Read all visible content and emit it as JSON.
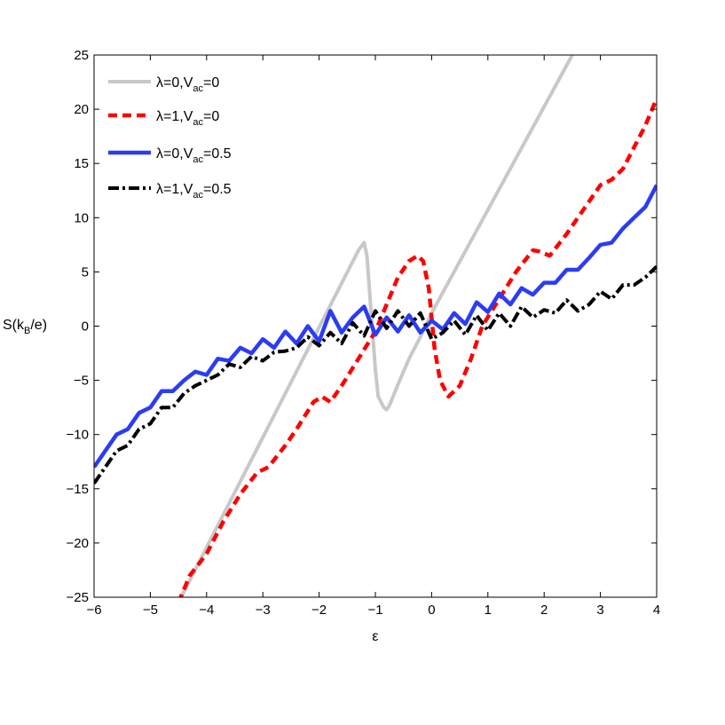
{
  "chart_data": {
    "type": "line",
    "xlabel": "ε",
    "ylabel": "S(k_B/e)",
    "ylabel_parts": [
      "S(k",
      "B",
      "/e)"
    ],
    "xlim": [
      -6,
      4
    ],
    "ylim": [
      -25,
      25
    ],
    "xticks": [
      -6,
      -5,
      -4,
      -3,
      -2,
      -1,
      0,
      1,
      2,
      3,
      4
    ],
    "yticks": [
      -25,
      -20,
      -15,
      -10,
      -5,
      0,
      5,
      10,
      15,
      20,
      25
    ],
    "xtick_labels": [
      "−6",
      "−5",
      "−4",
      "−3",
      "−2",
      "−1",
      "0",
      "1",
      "2",
      "3",
      "4"
    ],
    "ytick_labels": [
      "−25",
      "−20",
      "−15",
      "−10",
      "−5",
      "0",
      "5",
      "10",
      "15",
      "20",
      "25"
    ],
    "grid": false,
    "legend_position": "top-left",
    "series": [
      {
        "name": "λ=0,V_ac=0",
        "name_parts": [
          "λ=0,V",
          "ac",
          "=0"
        ],
        "color": "#c8c8c8",
        "dash": "solid",
        "x": [
          -4.6,
          -1.3,
          -1.2,
          -1.15,
          -1.0,
          -0.95,
          -0.85,
          -0.8,
          -0.75,
          -0.6,
          -0.4,
          -0.2,
          0.0,
          2.5
        ],
        "y": [
          -26.5,
          7.0,
          7.7,
          6.5,
          -4.0,
          -6.5,
          -7.5,
          -7.7,
          -7.3,
          -5.4,
          -3.0,
          -1.0,
          1.2,
          25.0
        ]
      },
      {
        "name": "λ=1,V_ac=0",
        "name_parts": [
          "λ=1,V",
          "ac",
          "=0"
        ],
        "color": "#ff0000",
        "dash": "dashed",
        "x": [
          -4.5,
          -4.3,
          -4.0,
          -3.7,
          -3.4,
          -3.1,
          -2.9,
          -2.6,
          -2.4,
          -2.1,
          -1.95,
          -1.8,
          -1.6,
          -1.3,
          -1.0,
          -0.8,
          -0.6,
          -0.4,
          -0.25,
          -0.15,
          -0.05,
          0.05,
          0.15,
          0.3,
          0.5,
          0.7,
          0.9,
          1.2,
          1.5,
          1.8,
          1.9,
          2.1,
          2.4,
          2.6,
          2.8,
          3.0,
          3.2,
          3.4,
          3.6,
          3.8,
          4.0
        ],
        "y": [
          -25.5,
          -23.0,
          -21.0,
          -18.0,
          -15.5,
          -13.5,
          -13.0,
          -11.0,
          -9.5,
          -7.0,
          -6.5,
          -7.0,
          -5.5,
          -3.0,
          -0.5,
          2.0,
          4.5,
          6.0,
          6.5,
          6.0,
          3.5,
          -2.0,
          -5.0,
          -6.5,
          -5.5,
          -3.0,
          0.0,
          2.5,
          5.0,
          7.0,
          6.9,
          6.5,
          8.5,
          10.0,
          11.5,
          13.0,
          13.5,
          14.5,
          16.5,
          18.5,
          21.0
        ]
      },
      {
        "name": "λ=0,V_ac=0.5",
        "name_parts": [
          "λ=0,V",
          "ac",
          "=0.5"
        ],
        "color": "#2b3cf5",
        "dash": "solid",
        "x": [
          -6.0,
          -5.8,
          -5.6,
          -5.4,
          -5.2,
          -5.0,
          -4.8,
          -4.6,
          -4.4,
          -4.2,
          -4.0,
          -3.8,
          -3.6,
          -3.4,
          -3.2,
          -3.0,
          -2.8,
          -2.6,
          -2.4,
          -2.2,
          -2.0,
          -1.8,
          -1.6,
          -1.4,
          -1.2,
          -1.0,
          -0.8,
          -0.6,
          -0.4,
          -0.2,
          0.0,
          0.2,
          0.4,
          0.6,
          0.8,
          1.0,
          1.2,
          1.4,
          1.6,
          1.8,
          2.0,
          2.2,
          2.4,
          2.6,
          2.8,
          3.0,
          3.2,
          3.4,
          3.6,
          3.8,
          4.0
        ],
        "y": [
          -13.0,
          -11.5,
          -10.0,
          -9.5,
          -8.0,
          -7.5,
          -6.0,
          -6.0,
          -5.0,
          -4.2,
          -4.5,
          -3.0,
          -3.2,
          -2.0,
          -2.5,
          -1.2,
          -2.0,
          -0.5,
          -1.6,
          0.0,
          -1.4,
          1.4,
          -0.6,
          0.8,
          1.8,
          -0.8,
          0.8,
          -0.5,
          1.0,
          -0.6,
          0.5,
          -0.3,
          1.2,
          0.2,
          2.2,
          1.3,
          3.0,
          2.0,
          3.5,
          2.9,
          4.0,
          4.0,
          5.2,
          5.2,
          6.3,
          7.5,
          7.7,
          9.0,
          10.0,
          11.0,
          13.0
        ]
      },
      {
        "name": "λ=1,V_ac=0.5",
        "name_parts": [
          "λ=1,V",
          "ac",
          "=0.5"
        ],
        "color": "#000000",
        "dash": "dashdot",
        "x": [
          -6.0,
          -5.8,
          -5.6,
          -5.4,
          -5.2,
          -5.0,
          -4.8,
          -4.6,
          -4.4,
          -4.2,
          -4.0,
          -3.8,
          -3.6,
          -3.4,
          -3.2,
          -3.0,
          -2.8,
          -2.6,
          -2.4,
          -2.2,
          -2.0,
          -1.8,
          -1.6,
          -1.4,
          -1.2,
          -1.0,
          -0.8,
          -0.6,
          -0.4,
          -0.2,
          0.0,
          0.2,
          0.4,
          0.6,
          0.8,
          1.0,
          1.2,
          1.4,
          1.6,
          1.8,
          2.0,
          2.2,
          2.4,
          2.6,
          2.8,
          3.0,
          3.2,
          3.4,
          3.6,
          3.8,
          4.0
        ],
        "y": [
          -14.5,
          -13.0,
          -11.5,
          -11.0,
          -9.5,
          -9.0,
          -7.5,
          -7.5,
          -6.2,
          -5.5,
          -5.0,
          -4.5,
          -3.5,
          -3.8,
          -2.8,
          -3.2,
          -2.4,
          -2.3,
          -2.0,
          -1.0,
          -1.8,
          -0.6,
          -1.6,
          0.3,
          -0.9,
          1.4,
          -0.2,
          1.4,
          0.0,
          1.2,
          -1.2,
          -0.6,
          0.5,
          -0.8,
          1.0,
          -0.4,
          1.2,
          0.0,
          1.8,
          0.8,
          1.5,
          1.2,
          2.4,
          1.4,
          2.0,
          3.2,
          2.5,
          3.8,
          3.8,
          4.5,
          5.5
        ]
      }
    ]
  }
}
